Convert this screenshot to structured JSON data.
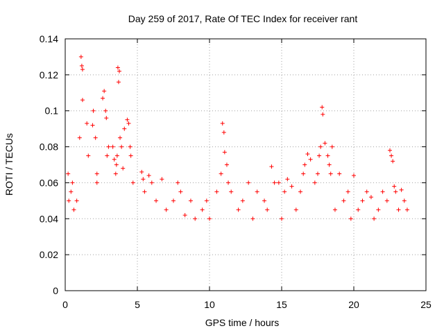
{
  "chart_data": {
    "type": "scatter",
    "title": "Day 259 of 2017, Rate Of TEC Index for receiver rant",
    "xlabel": "GPS time / hours",
    "ylabel": "ROTI / TECUs",
    "xlim": [
      0,
      25
    ],
    "ylim": [
      0,
      0.14
    ],
    "x_ticks": [
      0,
      5,
      10,
      15,
      20,
      25
    ],
    "x_tick_labels": [
      "0",
      "5",
      "10",
      "15",
      "20",
      "25"
    ],
    "y_ticks": [
      0,
      0.02,
      0.04,
      0.06,
      0.08,
      0.1,
      0.12,
      0.14
    ],
    "y_tick_labels": [
      "0",
      "0.02",
      "0.04",
      "0.06",
      "0.08",
      "0.1",
      "0.12",
      "0.14"
    ],
    "grid": true,
    "marker": "+",
    "color": "#ff0000",
    "series": [
      {
        "name": "ROTI",
        "x": [
          0.2,
          0.25,
          0.4,
          0.5,
          0.6,
          0.8,
          1.0,
          1.1,
          1.15,
          1.2,
          1.2,
          1.5,
          1.6,
          1.9,
          1.95,
          2.1,
          2.2,
          2.2,
          2.6,
          2.7,
          2.8,
          2.85,
          2.9,
          3.0,
          3.3,
          3.4,
          3.5,
          3.55,
          3.6,
          3.65,
          3.7,
          3.75,
          3.8,
          3.9,
          4.0,
          4.1,
          4.3,
          4.4,
          4.5,
          4.55,
          4.7,
          5.3,
          5.4,
          5.5,
          5.8,
          6.0,
          6.3,
          6.7,
          7.0,
          7.5,
          7.8,
          8.0,
          8.3,
          8.7,
          9.0,
          9.5,
          9.8,
          10.0,
          10.5,
          10.8,
          10.9,
          11.0,
          11.05,
          11.2,
          11.3,
          11.5,
          12.0,
          12.3,
          12.7,
          13.0,
          13.3,
          13.8,
          14.0,
          14.3,
          14.5,
          14.8,
          15.0,
          15.2,
          15.4,
          15.7,
          16.0,
          16.3,
          16.5,
          16.6,
          16.8,
          17.0,
          17.3,
          17.5,
          17.6,
          17.7,
          17.8,
          17.85,
          18.0,
          18.2,
          18.3,
          18.4,
          18.5,
          18.7,
          19.0,
          19.3,
          19.6,
          19.8,
          20.0,
          20.3,
          20.6,
          20.9,
          21.2,
          21.4,
          21.7,
          22.0,
          22.3,
          22.5,
          22.6,
          22.7,
          22.8,
          22.9,
          23.1,
          23.3,
          23.5,
          23.7
        ],
        "y": [
          0.065,
          0.05,
          0.055,
          0.06,
          0.045,
          0.05,
          0.085,
          0.13,
          0.125,
          0.123,
          0.106,
          0.093,
          0.075,
          0.092,
          0.1,
          0.085,
          0.06,
          0.065,
          0.107,
          0.111,
          0.1,
          0.096,
          0.075,
          0.08,
          0.08,
          0.073,
          0.065,
          0.07,
          0.075,
          0.124,
          0.116,
          0.122,
          0.085,
          0.08,
          0.068,
          0.09,
          0.095,
          0.093,
          0.08,
          0.075,
          0.06,
          0.066,
          0.062,
          0.055,
          0.064,
          0.06,
          0.05,
          0.062,
          0.045,
          0.05,
          0.06,
          0.055,
          0.042,
          0.05,
          0.04,
          0.045,
          0.05,
          0.04,
          0.055,
          0.065,
          0.093,
          0.088,
          0.077,
          0.07,
          0.06,
          0.055,
          0.045,
          0.05,
          0.06,
          0.04,
          0.055,
          0.05,
          0.045,
          0.069,
          0.06,
          0.06,
          0.04,
          0.055,
          0.062,
          0.058,
          0.045,
          0.055,
          0.065,
          0.07,
          0.076,
          0.073,
          0.06,
          0.065,
          0.075,
          0.08,
          0.102,
          0.098,
          0.082,
          0.075,
          0.07,
          0.065,
          0.08,
          0.045,
          0.065,
          0.05,
          0.055,
          0.04,
          0.064,
          0.045,
          0.05,
          0.055,
          0.052,
          0.04,
          0.045,
          0.055,
          0.05,
          0.078,
          0.075,
          0.072,
          0.058,
          0.055,
          0.045,
          0.056,
          0.05,
          0.045
        ]
      }
    ]
  }
}
